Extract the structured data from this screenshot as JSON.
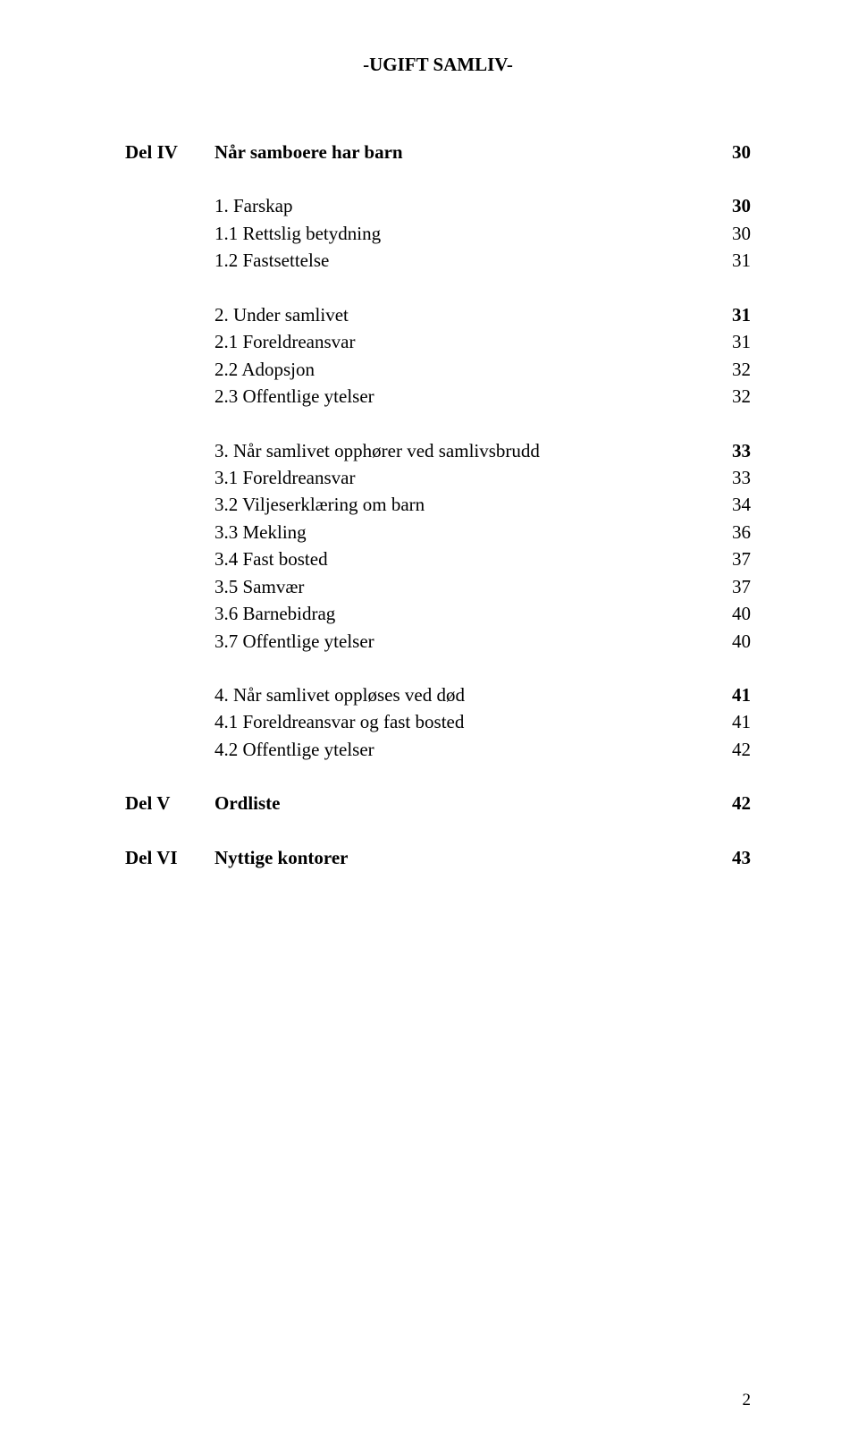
{
  "header": {
    "title": "-UGIFT SAMLIV-"
  },
  "parts": {
    "delIV": {
      "label": "Del IV",
      "heading": "Når samboere har barn",
      "page": "30"
    },
    "delV": {
      "label": "Del V",
      "heading": "Ordliste",
      "page": "42"
    },
    "delVI": {
      "label": "Del VI",
      "heading": "Nyttige kontorer",
      "page": "43"
    }
  },
  "sections": {
    "s1": {
      "title": "1. Farskap",
      "page": "30"
    },
    "s1_1": {
      "title": "1.1 Rettslig betydning",
      "page": "30"
    },
    "s1_2": {
      "title": "1.2 Fastsettelse",
      "page": "31"
    },
    "s2": {
      "title": "2. Under samlivet",
      "page": "31"
    },
    "s2_1": {
      "title": "2.1 Foreldreansvar",
      "page": "31"
    },
    "s2_2": {
      "title": "2.2 Adopsjon",
      "page": "32"
    },
    "s2_3": {
      "title": "2.3 Offentlige ytelser",
      "page": "32"
    },
    "s3": {
      "title": "3. Når samlivet opphører ved samlivsbrudd",
      "page": "33"
    },
    "s3_1": {
      "title": "3.1 Foreldreansvar",
      "page": "33"
    },
    "s3_2": {
      "title": "3.2 Viljeserklæring om barn",
      "page": "34"
    },
    "s3_3": {
      "title": "3.3 Mekling",
      "page": "36"
    },
    "s3_4": {
      "title": "3.4 Fast bosted",
      "page": "37"
    },
    "s3_5": {
      "title": "3.5 Samvær",
      "page": "37"
    },
    "s3_6": {
      "title": "3.6 Barnebidrag",
      "page": "40"
    },
    "s3_7": {
      "title": "3.7 Offentlige ytelser",
      "page": "40"
    },
    "s4": {
      "title": "4. Når samlivet oppløses ved død",
      "page": "41"
    },
    "s4_1": {
      "title": "4.1 Foreldreansvar og fast bosted",
      "page": "41"
    },
    "s4_2": {
      "title": "4.2 Offentlige ytelser",
      "page": "42"
    }
  },
  "footer": {
    "pageNumber": "2"
  },
  "style": {
    "background": "#ffffff",
    "textColor": "#000000",
    "fontFamily": "Times New Roman",
    "fontSizeBody": 21,
    "fontSizeFooter": 19,
    "pageWidth": 960,
    "pageHeight": 1627
  }
}
